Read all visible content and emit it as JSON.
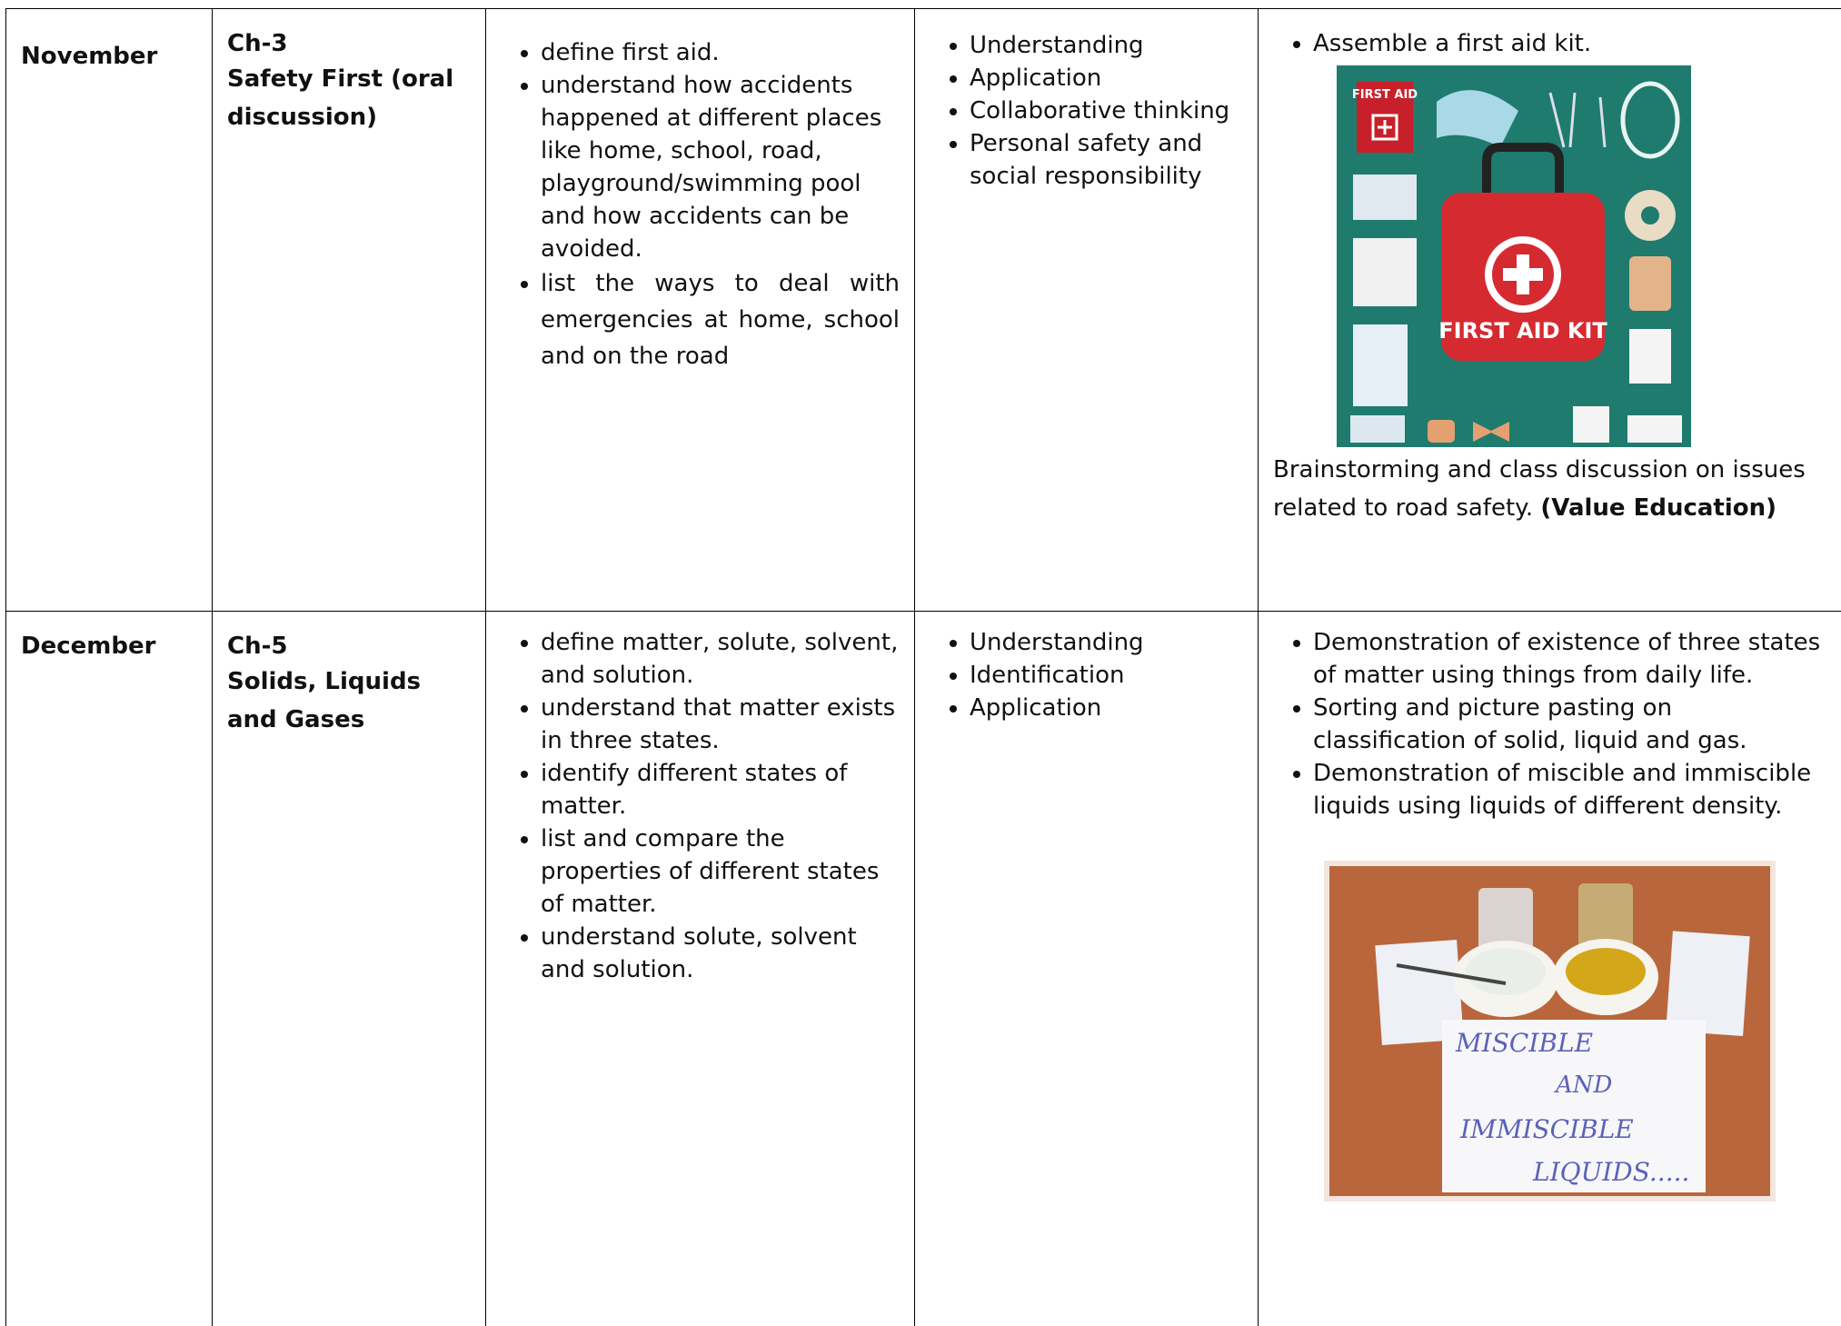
{
  "table": {
    "rows": [
      {
        "month": "November",
        "chapter": "Ch-3",
        "chapter_title": "Safety First (oral discussion)",
        "objectives": [
          "define first aid.",
          "understand how accidents happened at different places like home, school, road, playground/swimming pool and how accidents can be avoided.",
          "list the ways to deal with emergencies at home, school and on the road"
        ],
        "skills": [
          "Understanding",
          "Application",
          "Collaborative thinking",
          "Personal safety and social responsibility"
        ],
        "activities": [
          "Assemble a first aid kit."
        ],
        "image_texts": [
          "FIRST AID",
          "FIRST AID KIT"
        ],
        "note": "Brainstorming and class discussion on issues related to road safety.",
        "note_bold": "(Value Education)"
      },
      {
        "month": "December",
        "chapter": "Ch-5",
        "chapter_title": "Solids, Liquids and Gases",
        "objectives": [
          "define matter, solute, solvent, and solution.",
          "understand that matter exists in three states.",
          "identify different states of matter.",
          "list and compare the properties of different states of matter.",
          "understand solute, solvent and solution."
        ],
        "skills": [
          "Understanding",
          "Identification",
          "Application"
        ],
        "activities": [
          "Demonstration of existence of three states of matter using things from daily life.",
          "Sorting and picture pasting on classification of solid, liquid and gas.",
          "Demonstration of miscible and immiscible liquids using liquids of different density."
        ],
        "image_texts": [
          "MISCIBLE",
          "AND",
          "IMMISCIBLE",
          "LIQUIDS....."
        ]
      }
    ]
  }
}
